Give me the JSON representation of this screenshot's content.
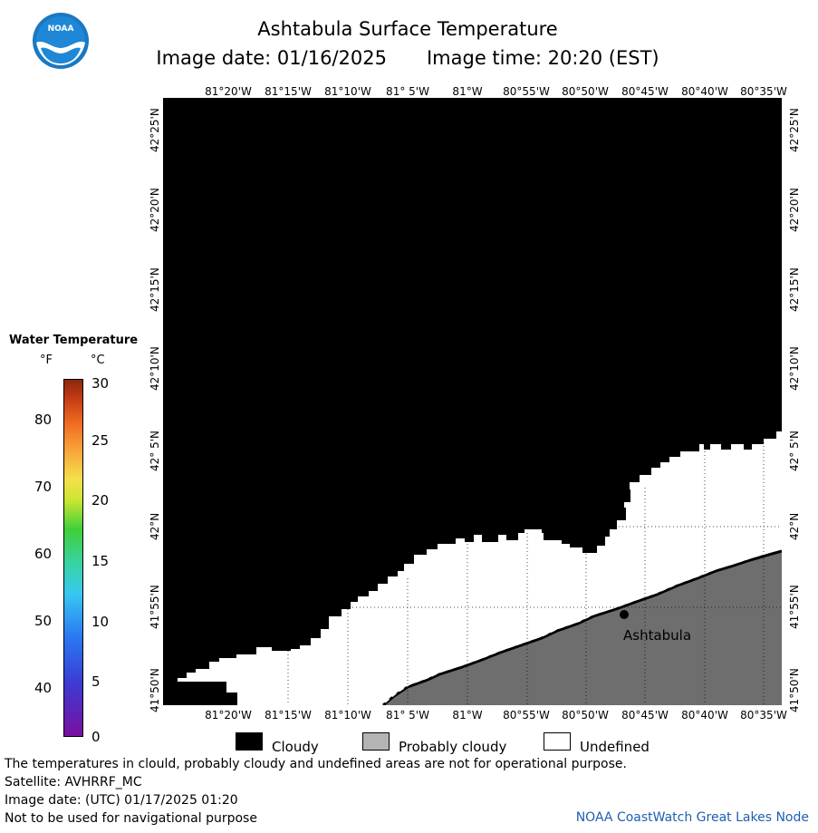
{
  "header": {
    "title": "Ashtabula Surface Temperature",
    "image_date": "Image date: 01/16/2025",
    "image_time": "Image time: 20:20 (EST)"
  },
  "map": {
    "lon_labels": [
      "81°20'W",
      "81°15'W",
      "81°10'W",
      "81° 5'W",
      "81°W",
      "80°55'W",
      "80°50'W",
      "80°45'W",
      "80°40'W",
      "80°35'W"
    ],
    "lat_labels": [
      "42°25'N",
      "42°20'N",
      "42°15'N",
      "42°10'N",
      "42° 5'N",
      "42°N",
      "41°55'N",
      "41°50'N"
    ],
    "city_label": "Ashtabula",
    "colors": {
      "cloud": "#000000",
      "land": "#6e6e6e",
      "undefined": "#ffffff",
      "shore_hatch": "#bdbdbd"
    }
  },
  "legend": {
    "title": "Water Temperature",
    "unit_f": "°F",
    "unit_c": "°C",
    "f_ticks": [
      "80",
      "70",
      "60",
      "50",
      "40"
    ],
    "c_ticks": [
      "30",
      "25",
      "20",
      "15",
      "10",
      "5",
      "0"
    ]
  },
  "key": {
    "cloudy": "Cloudy",
    "probably_cloudy": "Probably cloudy",
    "undefined": "Undefined",
    "colors": {
      "cloudy": "#000000",
      "probably_cloudy": "#b4b4b4",
      "undefined": "#ffffff"
    }
  },
  "footer": {
    "note": "The temperatures in clould, probably cloudy and undefined areas are not for operational purpose.",
    "satellite": "Satellite: AVHRRF_MC",
    "utc_date": "Image date: (UTC) 01/17/2025  01:20",
    "navigation": "Not to be used for navigational purpose",
    "credit": "NOAA CoastWatch Great Lakes Node"
  }
}
